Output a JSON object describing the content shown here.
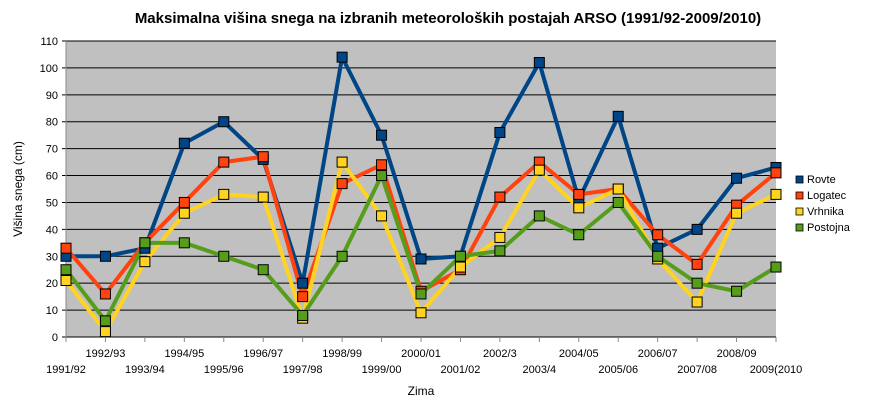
{
  "chart_data": {
    "type": "line",
    "title": "Maksimalna višina snega na izbranih meteoroloških postajah ARSO (1991/92-2009/2010)",
    "xlabel": "Zima",
    "ylabel": "Višina snega (cm)",
    "ylim": [
      0,
      110
    ],
    "yticks": [
      0,
      10,
      20,
      30,
      40,
      50,
      60,
      70,
      80,
      90,
      100,
      110
    ],
    "grid": true,
    "legend_position": "right",
    "categories": [
      "1991/92",
      "1992/93",
      "1993/94",
      "1994/95",
      "1995/96",
      "1996/97",
      "1997/98",
      "1998/99",
      "1999/00",
      "2000/01",
      "2001/02",
      "2002/3",
      "2003/4",
      "2004/05",
      "2005/06",
      "2006/07",
      "2007/08",
      "2008/09",
      "2009(2010"
    ],
    "series": [
      {
        "name": "Rovte",
        "color": "#004586",
        "values": [
          30,
          30,
          33,
          72,
          80,
          66,
          20,
          104,
          75,
          29,
          30,
          76,
          102,
          51,
          82,
          33,
          40,
          59,
          63
        ]
      },
      {
        "name": "Logatec",
        "color": "#ff420e",
        "values": [
          33,
          16,
          35,
          50,
          65,
          67,
          15,
          57,
          64,
          17,
          25,
          52,
          65,
          53,
          55,
          38,
          27,
          49,
          61
        ]
      },
      {
        "name": "Vrhnika",
        "color": "#ffd320",
        "values": [
          21,
          2,
          28,
          46,
          53,
          52,
          7,
          65,
          45,
          9,
          26,
          37,
          62,
          48,
          55,
          29,
          13,
          46,
          53
        ]
      },
      {
        "name": "Postojna",
        "color": "#579d1c",
        "values": [
          25,
          6,
          35,
          35,
          30,
          25,
          8,
          30,
          60,
          16,
          30,
          32,
          45,
          38,
          50,
          30,
          20,
          17,
          26
        ]
      }
    ]
  }
}
